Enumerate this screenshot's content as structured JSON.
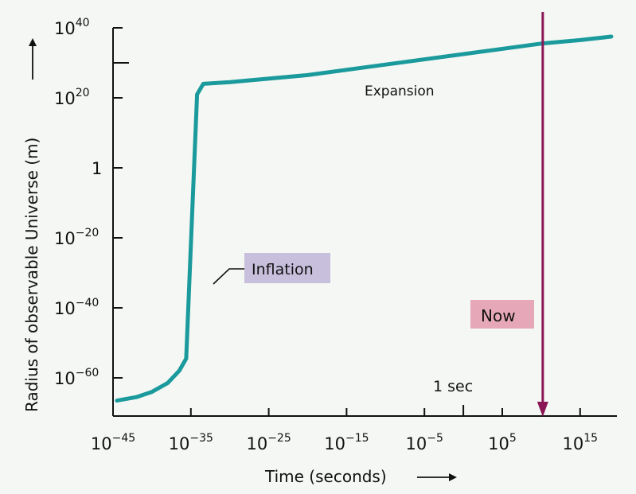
{
  "chart_data": {
    "type": "line",
    "xlabel": "Time (seconds)",
    "ylabel": "Radius of observable Universe  (m)",
    "x_scale": "log",
    "y_scale": "log",
    "xlim_log10": [
      -45,
      20
    ],
    "ylim_log10": [
      -67,
      40
    ],
    "x_ticks": [
      {
        "base": "10",
        "exp": "−45",
        "value": -45
      },
      {
        "base": "10",
        "exp": "−35",
        "value": -35
      },
      {
        "base": "10",
        "exp": "−25",
        "value": -25
      },
      {
        "base": "10",
        "exp": "−15",
        "value": -15
      },
      {
        "base": "10",
        "exp": "−5",
        "value": -5
      },
      {
        "base": "10",
        "exp": "5",
        "value": 5
      },
      {
        "base": "10",
        "exp": "15",
        "value": 15
      }
    ],
    "x_minor_ticks": [
      0
    ],
    "y_ticks": [
      {
        "base": "10",
        "exp": "40",
        "value": 40
      },
      {
        "base": "10",
        "exp": "20",
        "value": 20
      },
      {
        "base": "1",
        "exp": "",
        "value": 0
      },
      {
        "base": "10",
        "exp": "−20",
        "value": -20
      },
      {
        "base": "10",
        "exp": "−40",
        "value": -40
      },
      {
        "base": "10",
        "exp": "−60",
        "value": -60
      }
    ],
    "y_minor_ticks": [
      30
    ],
    "series": [
      {
        "color": "#1a9a9c",
        "points_log10": [
          [
            -44.5,
            -66.5
          ],
          [
            -42,
            -65.5
          ],
          [
            -40,
            -64
          ],
          [
            -38,
            -61.5
          ],
          [
            -36.5,
            -58
          ],
          [
            -35.6,
            -54.5
          ],
          [
            -34.2,
            21
          ],
          [
            -33.4,
            24
          ],
          [
            -30,
            24.5
          ],
          [
            -20,
            26.5
          ],
          [
            -10,
            29.5
          ],
          [
            0,
            32.5
          ],
          [
            10,
            35.5
          ],
          [
            15,
            36.5
          ],
          [
            19,
            37.5
          ]
        ]
      }
    ],
    "annotations": {
      "inflation": "Inflation",
      "expansion": "Expansion",
      "now": "Now",
      "one_sec": "1 sec"
    },
    "now_x_log10": 10.2,
    "colors": {
      "curve": "#1a9a9c",
      "now_line": "#8a1656",
      "inflation_box": "#c7bfdc",
      "now_box": "#e6a8b8",
      "axis": "#111111"
    }
  }
}
